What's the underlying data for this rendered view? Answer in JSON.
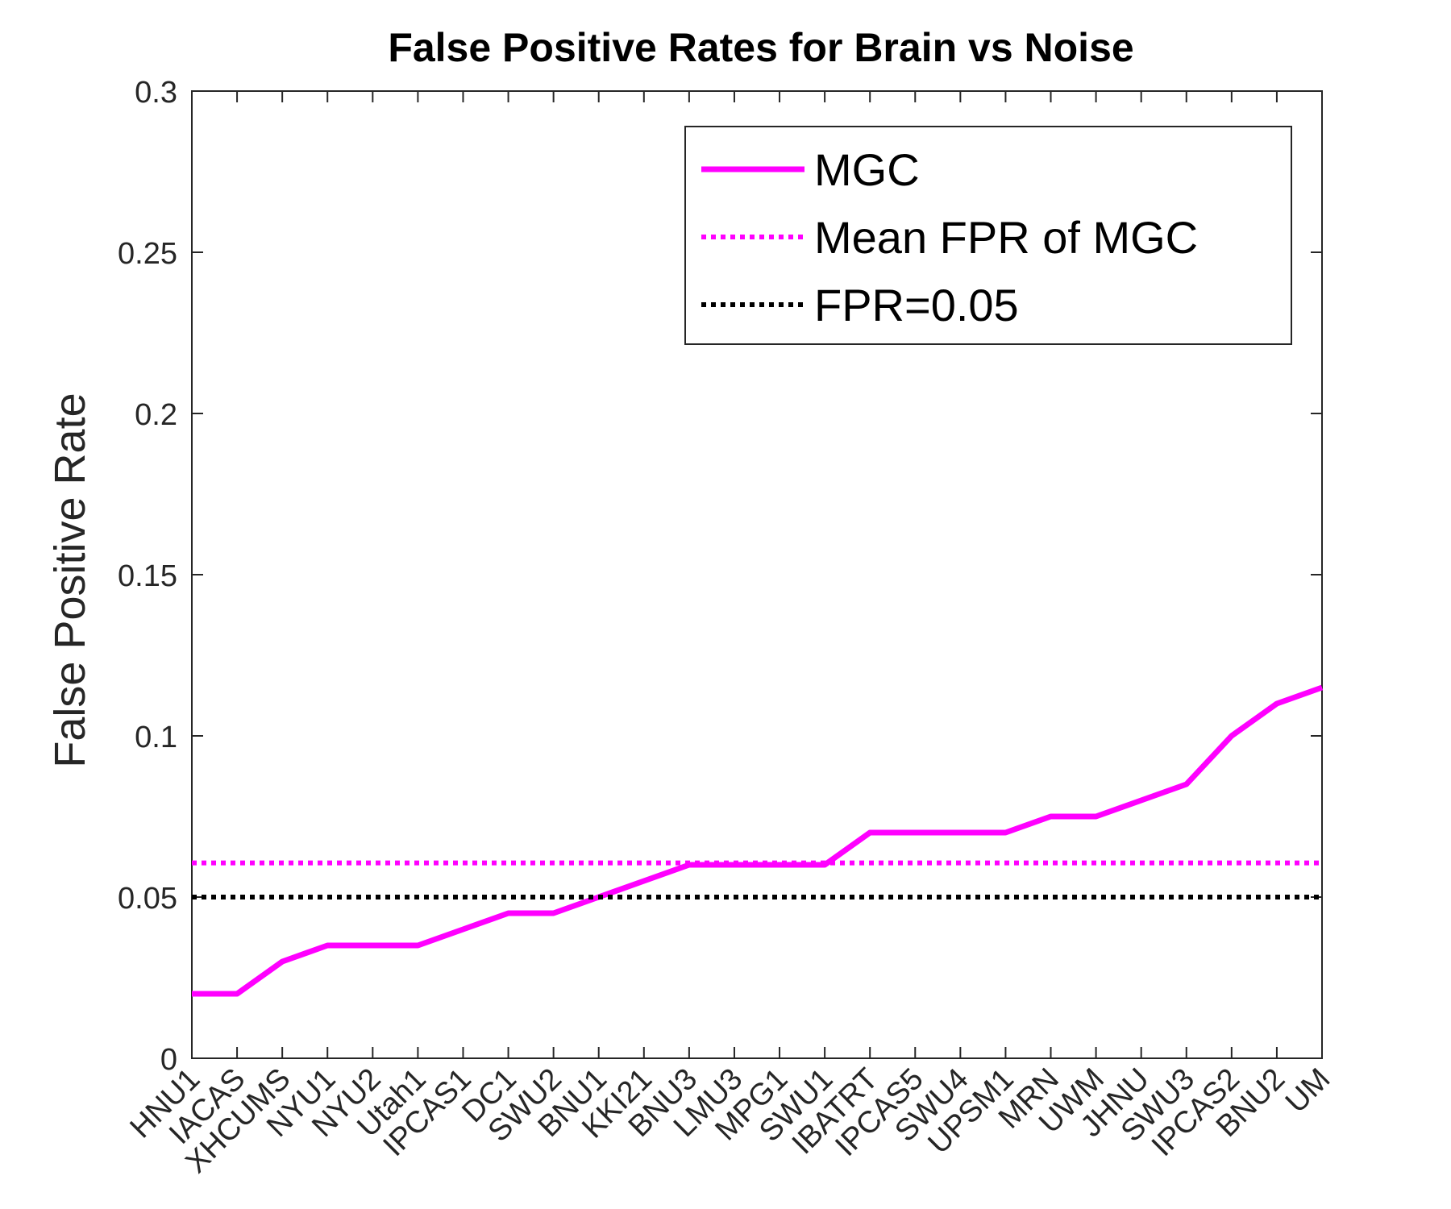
{
  "chart_data": {
    "type": "line",
    "title": "False Positive Rates for Brain vs Noise",
    "xlabel": "",
    "ylabel": "False Positive Rate",
    "ylim": [
      0,
      0.3
    ],
    "yticks": [
      "0",
      "0.05",
      "0.1",
      "0.15",
      "0.2",
      "0.25",
      "0.3"
    ],
    "categories": [
      "HNU1",
      "IACAS",
      "XHCUMS",
      "NYU1",
      "NYU2",
      "Utah1",
      "IPCAS1",
      "DC1",
      "SWU2",
      "BNU1",
      "KKI21",
      "BNU3",
      "LMU3",
      "MPG1",
      "SWU1",
      "IBATRT",
      "IPCAS5",
      "SWU4",
      "UPSM1",
      "MRN",
      "UWM",
      "JHNU",
      "SWU3",
      "IPCAS2",
      "BNU2",
      "UM"
    ],
    "series": [
      {
        "name": "MGC",
        "style": "solid",
        "color": "#ff00ff",
        "values": [
          0.02,
          0.02,
          0.03,
          0.035,
          0.035,
          0.035,
          0.04,
          0.045,
          0.045,
          0.05,
          0.055,
          0.06,
          0.06,
          0.06,
          0.06,
          0.07,
          0.07,
          0.07,
          0.07,
          0.075,
          0.075,
          0.08,
          0.085,
          0.1,
          0.11,
          0.115
        ]
      },
      {
        "name": "Mean FPR of MGC",
        "style": "dotted",
        "color": "#ff00ff",
        "constant": 0.0606
      },
      {
        "name": "FPR=0.05",
        "style": "dotted",
        "color": "#000000",
        "constant": 0.05
      }
    ],
    "legend_position": "top-right",
    "grid": false
  }
}
